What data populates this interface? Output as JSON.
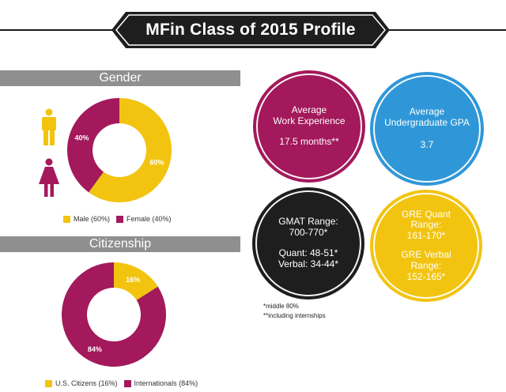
{
  "title": "MFin Class of 2015 Profile",
  "colors": {
    "yellow": "#f2c40f",
    "magenta": "#a3195b",
    "blue": "#2f97d8",
    "black": "#1e1e1e",
    "gray_bar": "#8f8f8f"
  },
  "gender": {
    "heading": "Gender",
    "icons": [
      "male-figure-icon",
      "female-figure-icon"
    ]
  },
  "citizenship": {
    "heading": "Citizenship"
  },
  "chart_data": [
    {
      "type": "pie",
      "variant": "donut",
      "categories": [
        "Male (60%)",
        "Female (40%)"
      ],
      "values": [
        60,
        40
      ],
      "data_labels": [
        "60%",
        "40%"
      ],
      "colors": [
        "#f2c40f",
        "#a3195b"
      ],
      "legend_position": "bottom"
    },
    {
      "type": "pie",
      "variant": "donut",
      "categories": [
        "U.S. Citizens (16%)",
        "Internationals (84%)"
      ],
      "values": [
        16,
        84
      ],
      "data_labels": [
        "16%",
        "84%"
      ],
      "colors": [
        "#f2c40f",
        "#a3195b"
      ],
      "legend_position": "bottom"
    }
  ],
  "stats": {
    "work": {
      "line1": "Average",
      "line2": "Work Experience",
      "value": "17.5 months**"
    },
    "gpa": {
      "line1": "Average",
      "line2": "Undergraduate GPA",
      "value": "3.7"
    },
    "gmat": {
      "line1": "GMAT Range:",
      "line2": "700-770*",
      "line3": "Quant: 48-51*",
      "line4": "Verbal: 34-44*"
    },
    "gre": {
      "line1": "GRE Quant",
      "line2": "Range:",
      "line3": "161-170*",
      "line4": "GRE Verbal",
      "line5": "Range:",
      "line6": "152-165*"
    }
  },
  "footnotes": {
    "note1": "*middle 80%",
    "note2": "**including internships"
  }
}
